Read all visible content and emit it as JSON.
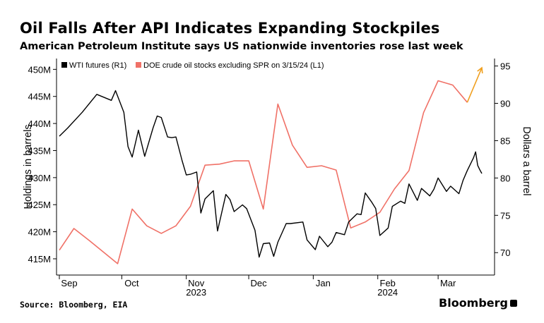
{
  "title": "Oil Falls After API Indicates Expanding Stockpiles",
  "subtitle": "American Petroleum Institute says US nationwide inventories rose last week",
  "source": "Source: Bloomberg, EIA",
  "brand": "Bloomberg",
  "chart_data": {
    "type": "line",
    "legend": [
      "WTI futures (R1)",
      "DOE crude oil stocks excluding SPR on 3/15/24 (L1)"
    ],
    "legend_position": "top-left",
    "left_axis": {
      "label": "Holdings in barrels",
      "ticks": [
        "415M",
        "420M",
        "425M",
        "430M",
        "435M",
        "440M",
        "445M",
        "450M"
      ],
      "tick_values": [
        415,
        420,
        425,
        430,
        435,
        440,
        445,
        450
      ],
      "range": [
        412,
        452
      ],
      "unit": "million barrels"
    },
    "right_axis": {
      "label": "Dollars a barrel",
      "ticks": [
        "70",
        "75",
        "80",
        "85",
        "90",
        "95"
      ],
      "tick_values": [
        70,
        75,
        80,
        85,
        90,
        95
      ],
      "range": [
        67,
        96
      ]
    },
    "x_axis": {
      "range": [
        "2023-09-01",
        "2024-03-22"
      ],
      "month_ticks": [
        {
          "label": "Sep",
          "date": "2023-09-01"
        },
        {
          "label": "Oct",
          "date": "2023-10-01"
        },
        {
          "label": "Nov",
          "date": "2023-11-01"
        },
        {
          "label": "Dec",
          "date": "2023-12-01"
        },
        {
          "label": "Jan",
          "date": "2024-01-01"
        },
        {
          "label": "Feb",
          "date": "2024-02-01"
        },
        {
          "label": "Mar",
          "date": "2024-03-01"
        }
      ],
      "year_labels": [
        {
          "label": "2023",
          "date": "2023-11-01"
        },
        {
          "label": "2024",
          "date": "2024-02-01"
        }
      ]
    },
    "grid": false,
    "series": [
      {
        "name": "DOE crude oil stocks excluding SPR on 3/15/24 (L1)",
        "axis": "left",
        "color": "#f07167",
        "points": [
          [
            "2023-09-01",
            416.6
          ],
          [
            "2023-09-08",
            420.6
          ],
          [
            "2023-09-15",
            418.5
          ],
          [
            "2023-09-22",
            416.3
          ],
          [
            "2023-09-29",
            414.1
          ],
          [
            "2023-10-06",
            424.2
          ],
          [
            "2023-10-13",
            421.1
          ],
          [
            "2023-10-20",
            419.7
          ],
          [
            "2023-10-27",
            421.1
          ],
          [
            "2023-11-03",
            424.7
          ],
          [
            "2023-11-10",
            432.3
          ],
          [
            "2023-11-17",
            432.5
          ],
          [
            "2023-11-24",
            433.1
          ],
          [
            "2023-12-01",
            433.1
          ],
          [
            "2023-12-08",
            424.2
          ],
          [
            "2023-12-15",
            443.6
          ],
          [
            "2023-12-22",
            436.0
          ],
          [
            "2023-12-29",
            431.9
          ],
          [
            "2024-01-05",
            432.2
          ],
          [
            "2024-01-12",
            431.4
          ],
          [
            "2024-01-19",
            420.7
          ],
          [
            "2024-01-26",
            421.8
          ],
          [
            "2024-02-02",
            423.6
          ],
          [
            "2024-02-09",
            427.9
          ],
          [
            "2024-02-16",
            431.3
          ],
          [
            "2024-02-23",
            442.0
          ],
          [
            "2024-03-01",
            447.9
          ],
          [
            "2024-03-08",
            447.1
          ],
          [
            "2024-03-15",
            443.9
          ]
        ]
      },
      {
        "name": "WTI futures (R1)",
        "axis": "right",
        "color": "#000000",
        "points": [
          [
            "2023-09-01",
            85.6
          ],
          [
            "2023-09-05",
            86.7
          ],
          [
            "2023-09-12",
            88.8
          ],
          [
            "2023-09-19",
            91.2
          ],
          [
            "2023-09-26",
            90.4
          ],
          [
            "2023-09-28",
            91.7
          ],
          [
            "2023-10-02",
            88.8
          ],
          [
            "2023-10-04",
            84.2
          ],
          [
            "2023-10-06",
            82.8
          ],
          [
            "2023-10-09",
            86.4
          ],
          [
            "2023-10-12",
            82.9
          ],
          [
            "2023-10-16",
            86.7
          ],
          [
            "2023-10-18",
            88.3
          ],
          [
            "2023-10-20",
            88.1
          ],
          [
            "2023-10-23",
            85.5
          ],
          [
            "2023-10-25",
            85.4
          ],
          [
            "2023-10-27",
            85.5
          ],
          [
            "2023-10-30",
            82.3
          ],
          [
            "2023-11-01",
            80.4
          ],
          [
            "2023-11-03",
            80.5
          ],
          [
            "2023-11-06",
            80.8
          ],
          [
            "2023-11-08",
            75.3
          ],
          [
            "2023-11-10",
            77.2
          ],
          [
            "2023-11-14",
            78.3
          ],
          [
            "2023-11-16",
            72.9
          ],
          [
            "2023-11-20",
            77.8
          ],
          [
            "2023-11-22",
            77.1
          ],
          [
            "2023-11-24",
            75.5
          ],
          [
            "2023-11-28",
            76.4
          ],
          [
            "2023-11-30",
            75.9
          ],
          [
            "2023-12-04",
            73.0
          ],
          [
            "2023-12-06",
            69.4
          ],
          [
            "2023-12-08",
            71.2
          ],
          [
            "2023-12-11",
            71.3
          ],
          [
            "2023-12-13",
            69.5
          ],
          [
            "2023-12-15",
            71.4
          ],
          [
            "2023-12-19",
            73.9
          ],
          [
            "2023-12-21",
            73.9
          ],
          [
            "2023-12-27",
            74.1
          ],
          [
            "2023-12-29",
            71.7
          ],
          [
            "2024-01-02",
            70.4
          ],
          [
            "2024-01-04",
            72.2
          ],
          [
            "2024-01-08",
            70.8
          ],
          [
            "2024-01-10",
            71.4
          ],
          [
            "2024-01-12",
            72.7
          ],
          [
            "2024-01-16",
            72.4
          ],
          [
            "2024-01-18",
            74.1
          ],
          [
            "2024-01-22",
            75.2
          ],
          [
            "2024-01-24",
            75.1
          ],
          [
            "2024-01-26",
            78.0
          ],
          [
            "2024-01-29",
            76.8
          ],
          [
            "2024-01-31",
            75.9
          ],
          [
            "2024-02-02",
            72.3
          ],
          [
            "2024-02-06",
            73.3
          ],
          [
            "2024-02-08",
            76.2
          ],
          [
            "2024-02-12",
            76.9
          ],
          [
            "2024-02-14",
            76.6
          ],
          [
            "2024-02-16",
            79.2
          ],
          [
            "2024-02-20",
            77.0
          ],
          [
            "2024-02-22",
            78.6
          ],
          [
            "2024-02-26",
            77.6
          ],
          [
            "2024-02-28",
            78.5
          ],
          [
            "2024-03-01",
            80.0
          ],
          [
            "2024-03-05",
            78.2
          ],
          [
            "2024-03-07",
            78.9
          ],
          [
            "2024-03-11",
            77.9
          ],
          [
            "2024-03-13",
            79.7
          ],
          [
            "2024-03-15",
            81.0
          ],
          [
            "2024-03-18",
            82.7
          ],
          [
            "2024-03-19",
            83.5
          ],
          [
            "2024-03-20",
            81.7
          ],
          [
            "2024-03-21",
            81.1
          ],
          [
            "2024-03-22",
            80.6
          ]
        ]
      }
    ],
    "annotation": {
      "type": "arrow",
      "color": "#f0a020",
      "from": [
        "2024-03-15",
        443.9
      ],
      "to": [
        "2024-03-22",
        450.3
      ]
    }
  }
}
